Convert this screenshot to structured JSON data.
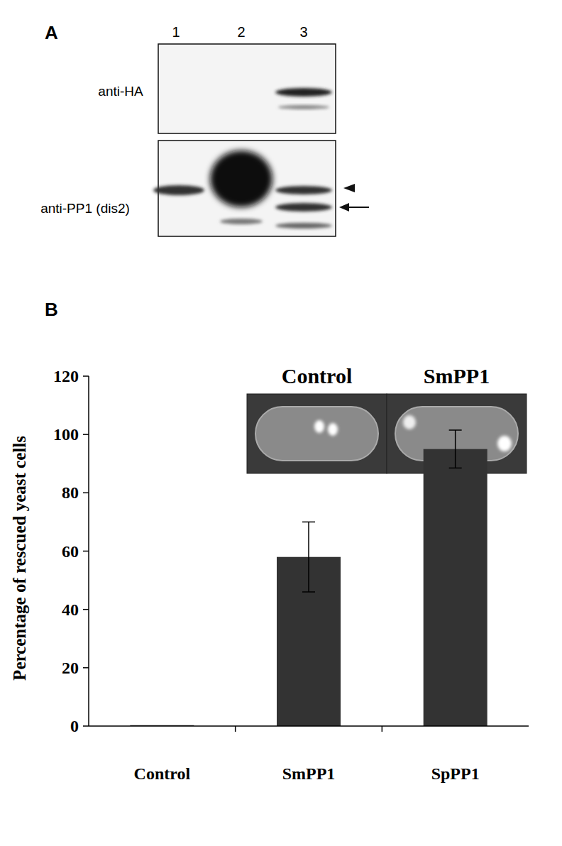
{
  "panels": {
    "a": {
      "label": "A",
      "lanes": [
        1,
        2,
        3
      ],
      "blots": [
        "anti-HA",
        "anti-PP1 (dis2)"
      ]
    },
    "b": {
      "label": "B",
      "insets": [
        "Control",
        "SmPP1"
      ]
    }
  },
  "chart_data": {
    "type": "bar",
    "categories": [
      "Control",
      "SmPP1",
      "SpPP1"
    ],
    "values": [
      0.3,
      58,
      95
    ],
    "errors": [
      0,
      12,
      6.5
    ],
    "color": "#333333",
    "ylim": [
      0,
      120
    ],
    "yticks": [
      0,
      20,
      40,
      60,
      80,
      100,
      120
    ],
    "y_label": "Percentage of rescued yeast cells",
    "grid": false
  }
}
